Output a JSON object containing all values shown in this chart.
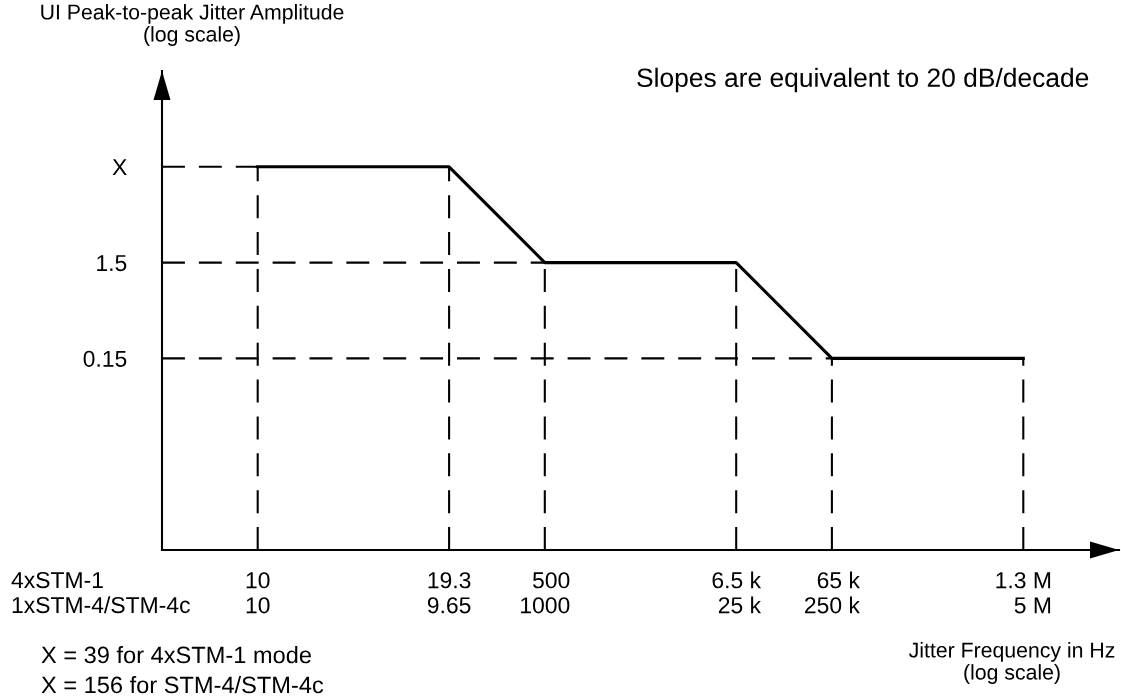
{
  "chart_data": {
    "type": "line",
    "ylabel": "UI Peak-to-peak Jitter Amplitude\n(log scale)",
    "xlabel": "Jitter Frequency in Hz\n(log scale)",
    "categories": [
      "10\n10",
      null,
      "19.3\n9.65",
      "500\n1000",
      null,
      "6.5 k\n25 k",
      "65 k\n250 k",
      null,
      "1.3 M\n5 M"
    ],
    "series": [
      {
        "color": "#000000",
        "values": [
          15,
          15,
          15,
          1.5,
          1.5,
          1.5,
          0.15,
          0.15,
          0.15
        ]
      }
    ],
    "log": "y",
    "ylim": [
      0.0015,
      150
    ],
    "yticks": [
      0.15,
      1.5,
      {
        "value": 15,
        "label": "X"
      }
    ],
    "ref_lines": [
      {
        "axis": "y",
        "value": 15,
        "color": "#000000",
        "line_style": "dashed"
      },
      {
        "axis": "y",
        "value": 1.5,
        "color": "#000000",
        "line_style": "dashed"
      },
      {
        "axis": "y",
        "value": 0.15,
        "color": "#000000",
        "line_style": "dashed"
      },
      {
        "axis": "x",
        "value": "10\n10",
        "color": "#000000",
        "line_style": "dashed"
      },
      {
        "axis": "x",
        "value": "19.3\n9.65",
        "color": "#000000",
        "line_style": "dashed"
      },
      {
        "axis": "x",
        "value": "500\n1000",
        "color": "#000000",
        "line_style": "dashed"
      },
      {
        "axis": "x",
        "value": "6.5 k\n25 k",
        "color": "#000000",
        "line_style": "dashed"
      },
      {
        "axis": "x",
        "value": "65 k\n250 k",
        "color": "#000000",
        "line_style": "dashed"
      },
      {
        "axis": "x",
        "value": "1.3 M\n5 M",
        "color": "#000000",
        "line_style": "dashed"
      }
    ],
    "annotations": [
      "Slopes are equivalent to 20 dB/decade",
      "4xSTM-1",
      "1xSTM-4/STM-4c",
      "X = 39 for 4xSTM-1 mode",
      "X = 156 for STM-4/STM-4c"
    ]
  }
}
